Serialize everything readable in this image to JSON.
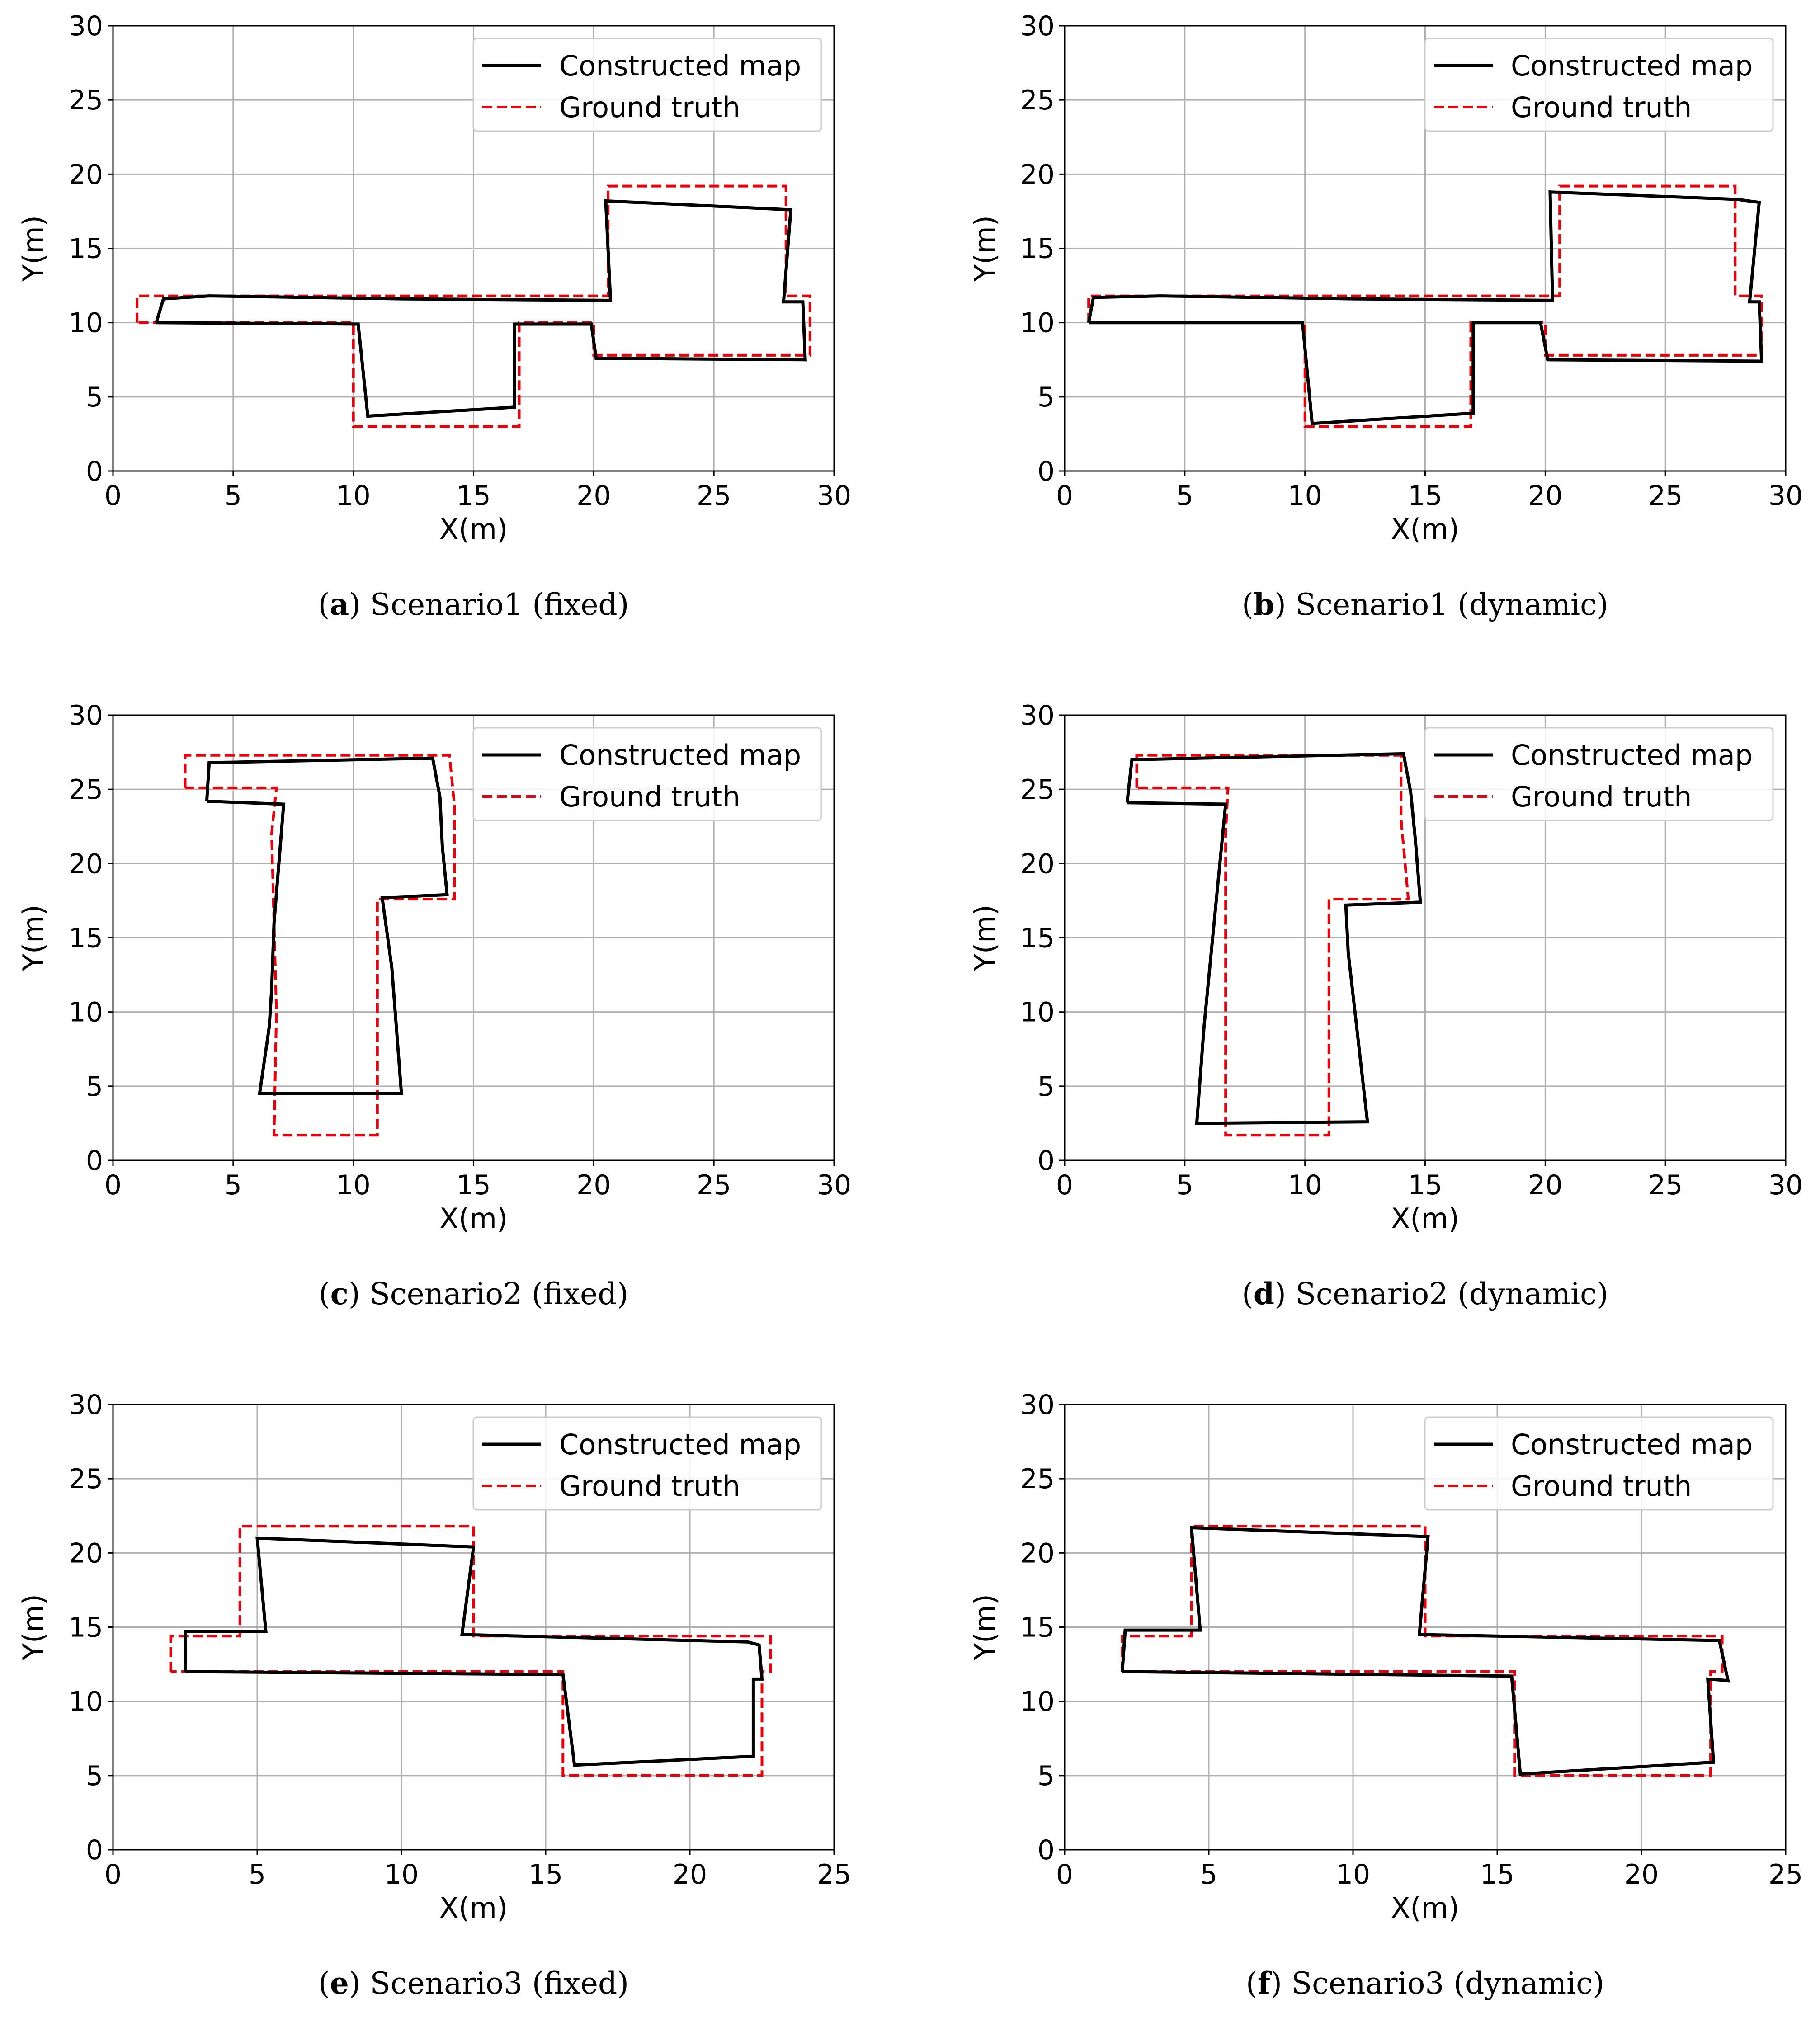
{
  "legend": {
    "constructed": "Constructed map",
    "ground_truth": "Ground truth"
  },
  "colors": {
    "constructed": "#000000",
    "ground_truth": "#e8000b",
    "grid": "#b0b0b0"
  },
  "chart_data": [
    {
      "type": "line",
      "caption_label": "a",
      "caption_text": " Scenario1 (fixed)",
      "xlabel": "X(m)",
      "ylabel": "Y(m)",
      "xlim": [
        0,
        30
      ],
      "ylim": [
        0,
        30
      ],
      "xticks": [
        "0",
        "5",
        "10",
        "15",
        "20",
        "25",
        "30"
      ],
      "yticks": [
        "0",
        "5",
        "10",
        "15",
        "20",
        "25",
        "30"
      ],
      "grid": true,
      "legend_position": "top-right",
      "series": [
        {
          "name": "Constructed map",
          "style": "solid",
          "points": [
            [
              1.8,
              10.0
            ],
            [
              2.1,
              11.6
            ],
            [
              4.0,
              11.8
            ],
            [
              12.0,
              11.6
            ],
            [
              20.5,
              11.5
            ],
            [
              20.7,
              11.5
            ],
            [
              20.5,
              18.2
            ],
            [
              28.2,
              17.6
            ],
            [
              27.9,
              11.4
            ],
            [
              28.7,
              11.4
            ],
            [
              28.8,
              7.5
            ],
            [
              20.1,
              7.6
            ],
            [
              19.9,
              9.9
            ],
            [
              16.7,
              9.9
            ],
            [
              16.7,
              4.3
            ],
            [
              10.6,
              3.7
            ],
            [
              10.2,
              9.9
            ],
            [
              1.8,
              10.0
            ]
          ]
        },
        {
          "name": "Ground truth",
          "style": "dashed",
          "points": [
            [
              1.0,
              10.0
            ],
            [
              1.0,
              11.8
            ],
            [
              20.6,
              11.8
            ],
            [
              20.6,
              19.2
            ],
            [
              28.0,
              19.2
            ],
            [
              28.0,
              11.8
            ],
            [
              29.0,
              11.8
            ],
            [
              29.0,
              7.8
            ],
            [
              20.0,
              7.8
            ],
            [
              20.0,
              10.0
            ],
            [
              16.9,
              10.0
            ],
            [
              16.9,
              3.0
            ],
            [
              10.0,
              3.0
            ],
            [
              10.0,
              10.0
            ],
            [
              1.0,
              10.0
            ]
          ]
        }
      ]
    },
    {
      "type": "line",
      "caption_label": "b",
      "caption_text": " Scenario1 (dynamic)",
      "xlabel": "X(m)",
      "ylabel": "Y(m)",
      "xlim": [
        0,
        30
      ],
      "ylim": [
        0,
        30
      ],
      "xticks": [
        "0",
        "5",
        "10",
        "15",
        "20",
        "25",
        "30"
      ],
      "yticks": [
        "0",
        "5",
        "10",
        "15",
        "20",
        "25",
        "30"
      ],
      "grid": true,
      "legend_position": "top-right",
      "series": [
        {
          "name": "Constructed map",
          "style": "solid",
          "points": [
            [
              1.0,
              10.0
            ],
            [
              1.2,
              11.7
            ],
            [
              4.0,
              11.8
            ],
            [
              12.0,
              11.6
            ],
            [
              20.3,
              11.5
            ],
            [
              20.2,
              18.8
            ],
            [
              28.0,
              18.3
            ],
            [
              28.9,
              18.1
            ],
            [
              28.5,
              11.4
            ],
            [
              28.9,
              11.4
            ],
            [
              29.0,
              7.4
            ],
            [
              20.1,
              7.5
            ],
            [
              19.8,
              10.0
            ],
            [
              17.0,
              10.0
            ],
            [
              17.0,
              3.9
            ],
            [
              10.3,
              3.2
            ],
            [
              9.9,
              10.0
            ],
            [
              1.0,
              10.0
            ]
          ]
        },
        {
          "name": "Ground truth",
          "style": "dashed",
          "points": [
            [
              1.0,
              10.0
            ],
            [
              1.0,
              11.8
            ],
            [
              20.6,
              11.8
            ],
            [
              20.6,
              19.2
            ],
            [
              27.9,
              19.2
            ],
            [
              27.9,
              11.8
            ],
            [
              29.0,
              11.8
            ],
            [
              29.0,
              7.8
            ],
            [
              20.0,
              7.8
            ],
            [
              20.0,
              10.0
            ],
            [
              16.9,
              10.0
            ],
            [
              16.9,
              3.0
            ],
            [
              10.0,
              3.0
            ],
            [
              10.0,
              10.0
            ],
            [
              1.0,
              10.0
            ]
          ]
        }
      ]
    },
    {
      "type": "line",
      "caption_label": "c",
      "caption_text": " Scenario2 (fixed)",
      "xlabel": "X(m)",
      "ylabel": "Y(m)",
      "xlim": [
        0,
        30
      ],
      "ylim": [
        0,
        30
      ],
      "xticks": [
        "0",
        "5",
        "10",
        "15",
        "20",
        "25",
        "30"
      ],
      "yticks": [
        "0",
        "5",
        "10",
        "15",
        "20",
        "25",
        "30"
      ],
      "grid": true,
      "legend_position": "top-right",
      "series": [
        {
          "name": "Constructed map",
          "style": "solid",
          "points": [
            [
              3.9,
              24.2
            ],
            [
              4.0,
              26.8
            ],
            [
              13.3,
              27.1
            ],
            [
              13.6,
              24.5
            ],
            [
              13.7,
              21.2
            ],
            [
              13.9,
              17.9
            ],
            [
              11.2,
              17.7
            ],
            [
              11.3,
              16.5
            ],
            [
              11.6,
              13.0
            ],
            [
              12.0,
              4.5
            ],
            [
              6.1,
              4.5
            ],
            [
              6.5,
              9.0
            ],
            [
              6.6,
              11.5
            ],
            [
              6.7,
              16.0
            ],
            [
              7.1,
              24.0
            ],
            [
              3.9,
              24.2
            ]
          ]
        },
        {
          "name": "Ground truth",
          "style": "dashed",
          "points": [
            [
              3.0,
              25.1
            ],
            [
              3.0,
              27.3
            ],
            [
              14.0,
              27.3
            ],
            [
              14.2,
              24.0
            ],
            [
              14.2,
              17.6
            ],
            [
              11.0,
              17.6
            ],
            [
              11.0,
              1.7
            ],
            [
              6.7,
              1.7
            ],
            [
              6.8,
              10.0
            ],
            [
              6.6,
              22.0
            ],
            [
              6.8,
              25.1
            ],
            [
              3.0,
              25.1
            ]
          ]
        }
      ]
    },
    {
      "type": "line",
      "caption_label": "d",
      "caption_text": " Scenario2 (dynamic)",
      "xlabel": "X(m)",
      "ylabel": "Y(m)",
      "xlim": [
        0,
        30
      ],
      "ylim": [
        0,
        30
      ],
      "xticks": [
        "0",
        "5",
        "10",
        "15",
        "20",
        "25",
        "30"
      ],
      "yticks": [
        "0",
        "5",
        "10",
        "15",
        "20",
        "25",
        "30"
      ],
      "grid": true,
      "legend_position": "top-right",
      "series": [
        {
          "name": "Constructed map",
          "style": "solid",
          "points": [
            [
              2.6,
              24.1
            ],
            [
              2.8,
              27.0
            ],
            [
              14.1,
              27.4
            ],
            [
              14.4,
              24.8
            ],
            [
              14.6,
              21.5
            ],
            [
              14.8,
              17.4
            ],
            [
              11.7,
              17.2
            ],
            [
              11.8,
              14.0
            ],
            [
              12.6,
              2.6
            ],
            [
              5.5,
              2.5
            ],
            [
              5.8,
              9.0
            ],
            [
              6.1,
              14.0
            ],
            [
              6.7,
              24.0
            ],
            [
              2.6,
              24.1
            ]
          ]
        },
        {
          "name": "Ground truth",
          "style": "dashed",
          "points": [
            [
              3.0,
              25.1
            ],
            [
              3.0,
              27.3
            ],
            [
              14.0,
              27.3
            ],
            [
              14.0,
              23.0
            ],
            [
              14.3,
              17.6
            ],
            [
              11.0,
              17.6
            ],
            [
              11.0,
              1.7
            ],
            [
              6.7,
              1.7
            ],
            [
              6.7,
              22.0
            ],
            [
              6.8,
              25.1
            ],
            [
              3.0,
              25.1
            ]
          ]
        }
      ]
    },
    {
      "type": "line",
      "caption_label": "e",
      "caption_text": " Scenario3 (fixed)",
      "xlabel": "X(m)",
      "ylabel": "Y(m)",
      "xlim": [
        0,
        25
      ],
      "ylim": [
        0,
        30
      ],
      "xticks": [
        "0",
        "5",
        "10",
        "15",
        "20",
        "25"
      ],
      "yticks": [
        "0",
        "5",
        "10",
        "15",
        "20",
        "25",
        "30"
      ],
      "grid": true,
      "legend_position": "top-right",
      "series": [
        {
          "name": "Constructed map",
          "style": "solid",
          "points": [
            [
              2.5,
              12.0
            ],
            [
              2.5,
              14.7
            ],
            [
              5.3,
              14.7
            ],
            [
              5.0,
              21.0
            ],
            [
              12.5,
              20.4
            ],
            [
              12.1,
              14.5
            ],
            [
              22.0,
              14.0
            ],
            [
              22.4,
              13.8
            ],
            [
              22.5,
              11.5
            ],
            [
              22.2,
              11.5
            ],
            [
              22.2,
              6.3
            ],
            [
              16.0,
              5.7
            ],
            [
              15.6,
              11.8
            ],
            [
              2.5,
              12.0
            ]
          ]
        },
        {
          "name": "Ground truth",
          "style": "dashed",
          "points": [
            [
              2.0,
              12.0
            ],
            [
              2.0,
              14.4
            ],
            [
              4.4,
              14.4
            ],
            [
              4.4,
              21.8
            ],
            [
              12.5,
              21.8
            ],
            [
              12.5,
              14.4
            ],
            [
              22.8,
              14.4
            ],
            [
              22.8,
              12.0
            ],
            [
              22.5,
              12.0
            ],
            [
              22.5,
              5.0
            ],
            [
              15.6,
              5.0
            ],
            [
              15.6,
              12.0
            ],
            [
              2.0,
              12.0
            ]
          ]
        }
      ]
    },
    {
      "type": "line",
      "caption_label": "f",
      "caption_text": " Scenario3 (dynamic)",
      "xlabel": "X(m)",
      "ylabel": "Y(m)",
      "xlim": [
        0,
        25
      ],
      "ylim": [
        0,
        30
      ],
      "xticks": [
        "0",
        "5",
        "10",
        "15",
        "20",
        "25"
      ],
      "yticks": [
        "0",
        "5",
        "10",
        "15",
        "20",
        "25",
        "30"
      ],
      "grid": true,
      "legend_position": "top-right",
      "series": [
        {
          "name": "Constructed map",
          "style": "solid",
          "points": [
            [
              2.0,
              12.0
            ],
            [
              2.1,
              14.8
            ],
            [
              4.7,
              14.8
            ],
            [
              4.4,
              21.7
            ],
            [
              12.6,
              21.1
            ],
            [
              12.3,
              14.5
            ],
            [
              22.7,
              14.1
            ],
            [
              23.0,
              11.4
            ],
            [
              22.3,
              11.5
            ],
            [
              22.5,
              5.9
            ],
            [
              15.8,
              5.1
            ],
            [
              15.5,
              11.7
            ],
            [
              2.0,
              12.0
            ]
          ]
        },
        {
          "name": "Ground truth",
          "style": "dashed",
          "points": [
            [
              2.0,
              12.0
            ],
            [
              2.0,
              14.4
            ],
            [
              4.4,
              14.4
            ],
            [
              4.4,
              21.8
            ],
            [
              12.5,
              21.8
            ],
            [
              12.5,
              14.4
            ],
            [
              22.8,
              14.4
            ],
            [
              22.8,
              12.0
            ],
            [
              22.4,
              12.0
            ],
            [
              22.4,
              5.0
            ],
            [
              15.6,
              5.0
            ],
            [
              15.6,
              12.0
            ],
            [
              2.0,
              12.0
            ]
          ]
        }
      ]
    }
  ]
}
